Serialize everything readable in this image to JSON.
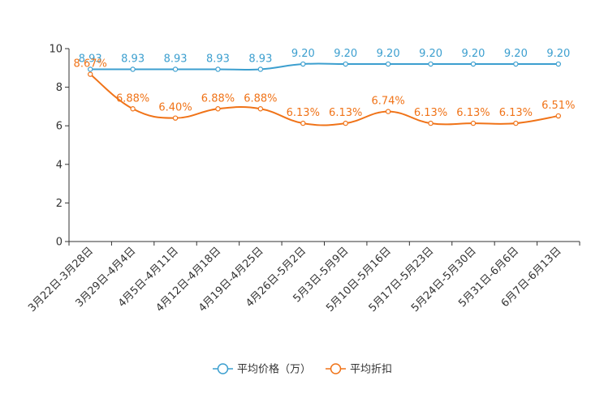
{
  "chart_data": {
    "type": "line",
    "title": "",
    "xlabel": "",
    "ylabel": "",
    "ylim": [
      0,
      10
    ],
    "yticks": [
      0,
      2,
      4,
      6,
      8,
      10
    ],
    "categories": [
      "3月22日-3月28日",
      "3月29日-4月4日",
      "4月5日-4月11日",
      "4月12日-4月18日",
      "4月19日-4月25日",
      "4月26日-5月2日",
      "5月3日-5月9日",
      "5月10日-5月16日",
      "5月17日-5月23日",
      "5月24日-5月30日",
      "5月31日-6月6日",
      "6月7日-6月13日"
    ],
    "series": [
      {
        "name": "平均价格（万）",
        "color": "#3c9fcf",
        "values": [
          8.93,
          8.93,
          8.93,
          8.93,
          8.93,
          9.2,
          9.2,
          9.2,
          9.2,
          9.2,
          9.2,
          9.2
        ],
        "labels": [
          "8.93",
          "8.93",
          "8.93",
          "8.93",
          "8.93",
          "9.20",
          "9.20",
          "9.20",
          "9.20",
          "9.20",
          "9.20",
          "9.20"
        ]
      },
      {
        "name": "平均折扣",
        "color": "#f07318",
        "values": [
          8.67,
          6.88,
          6.4,
          6.88,
          6.88,
          6.13,
          6.13,
          6.74,
          6.13,
          6.13,
          6.13,
          6.51
        ],
        "labels": [
          "8.67%",
          "6.88%",
          "6.40%",
          "6.88%",
          "6.88%",
          "6.13%",
          "6.13%",
          "6.74%",
          "6.13%",
          "6.13%",
          "6.13%",
          "6.51%"
        ]
      }
    ],
    "legend_position": "bottom-center",
    "grid": false
  }
}
